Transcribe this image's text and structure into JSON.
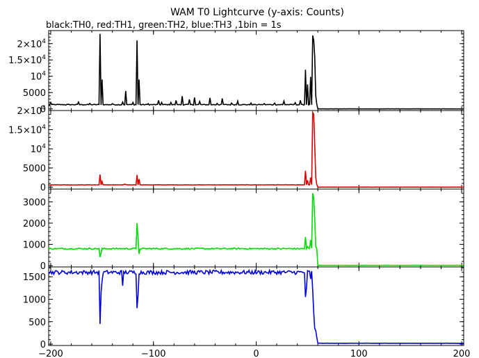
{
  "chart_data": {
    "type": "line",
    "title": "WAM T0 Lightcurve (y-axis: Counts)",
    "subtitle": "black:TH0, red:TH1, green:TH2, blue:TH3 ,1bin = 1s",
    "x_range": [
      -202,
      202
    ],
    "x_ticks": [
      -200,
      -100,
      0,
      100,
      200
    ],
    "x_tick_labels": [
      "−200",
      "−100",
      "0",
      "100",
      "200"
    ],
    "panels": [
      {
        "name": "TH0",
        "color": "#000000",
        "ylim": [
          -500,
          24000
        ],
        "y_ticks": [
          0,
          5000,
          10000,
          15000,
          20000
        ],
        "y_tick_labels": [
          {
            "mantissa": "0",
            "exp": ""
          },
          {
            "mantissa": "5000",
            "exp": ""
          },
          {
            "mantissa": "10",
            "exp": "4"
          },
          {
            "mantissa": "1.5×10",
            "exp": "4"
          },
          {
            "mantissa": "2×10",
            "exp": "4"
          }
        ],
        "baseline": 1300,
        "noise": 120,
        "post_level": 0,
        "spikes": [
          {
            "x": -200,
            "v": 2000
          },
          {
            "x": -173,
            "v": 2100
          },
          {
            "x": -162,
            "v": 1700
          },
          {
            "x": -152,
            "v": 23000
          },
          {
            "x": -150,
            "v": 9000
          },
          {
            "x": -140,
            "v": 1600
          },
          {
            "x": -130,
            "v": 2100
          },
          {
            "x": -127,
            "v": 5500
          },
          {
            "x": -120,
            "v": 2000
          },
          {
            "x": -116,
            "v": 21000
          },
          {
            "x": -114,
            "v": 9000
          },
          {
            "x": -105,
            "v": 1600
          },
          {
            "x": -95,
            "v": 2600
          },
          {
            "x": -92,
            "v": 2000
          },
          {
            "x": -83,
            "v": 2000
          },
          {
            "x": -78,
            "v": 2600
          },
          {
            "x": -72,
            "v": 3900
          },
          {
            "x": -65,
            "v": 2900
          },
          {
            "x": -60,
            "v": 3500
          },
          {
            "x": -55,
            "v": 2300
          },
          {
            "x": -45,
            "v": 3400
          },
          {
            "x": -38,
            "v": 1700
          },
          {
            "x": -33,
            "v": 3200
          },
          {
            "x": -24,
            "v": 1800
          },
          {
            "x": -18,
            "v": 2400
          },
          {
            "x": -5,
            "v": 1800
          },
          {
            "x": 8,
            "v": 1600
          },
          {
            "x": 18,
            "v": 1800
          },
          {
            "x": 27,
            "v": 2400
          },
          {
            "x": 38,
            "v": 1900
          },
          {
            "x": 43,
            "v": 2600
          },
          {
            "x": 48,
            "v": 12000
          },
          {
            "x": 50,
            "v": 7500
          },
          {
            "x": 53,
            "v": 9800
          },
          {
            "x": 55,
            "v": 22500
          },
          {
            "x": 56,
            "v": 21000
          },
          {
            "x": 57,
            "v": 16000
          },
          {
            "x": 58,
            "v": 4000
          }
        ]
      },
      {
        "name": "TH1",
        "color": "#dd0000",
        "ylim": [
          -500,
          20000
        ],
        "y_ticks": [
          0,
          5000,
          10000,
          15000,
          20000
        ],
        "y_tick_labels": [
          {
            "mantissa": "0",
            "exp": ""
          },
          {
            "mantissa": "5000",
            "exp": ""
          },
          {
            "mantissa": "10",
            "exp": "4"
          },
          {
            "mantissa": "1.5×10",
            "exp": "4"
          },
          {
            "mantissa": "2×10",
            "exp": "4"
          }
        ],
        "baseline": 600,
        "noise": 50,
        "post_level": 0,
        "spikes": [
          {
            "x": -152,
            "v": 3300
          },
          {
            "x": -150,
            "v": 1500
          },
          {
            "x": -128,
            "v": 800
          },
          {
            "x": -116,
            "v": 3200
          },
          {
            "x": -114,
            "v": 2100
          },
          {
            "x": 48,
            "v": 4300
          },
          {
            "x": 50,
            "v": 1800
          },
          {
            "x": 53,
            "v": 2500
          },
          {
            "x": 55,
            "v": 19500
          },
          {
            "x": 56,
            "v": 19000
          },
          {
            "x": 57,
            "v": 11000
          },
          {
            "x": 58,
            "v": 2500
          }
        ]
      },
      {
        "name": "TH2",
        "color": "#00dd00",
        "ylim": [
          -60,
          3600
        ],
        "y_ticks": [
          0,
          1000,
          2000,
          3000
        ],
        "y_tick_labels": [
          {
            "mantissa": "0",
            "exp": ""
          },
          {
            "mantissa": "1000",
            "exp": ""
          },
          {
            "mantissa": "2000",
            "exp": ""
          },
          {
            "mantissa": "3000",
            "exp": ""
          }
        ],
        "baseline": 800,
        "noise": 30,
        "post_level": 15,
        "spikes": [
          {
            "x": -152,
            "v": 400
          },
          {
            "x": -151,
            "v": 600
          },
          {
            "x": -116,
            "v": 2000
          },
          {
            "x": -115,
            "v": 1300
          },
          {
            "x": -114,
            "v": 550
          },
          {
            "x": 48,
            "v": 1350
          },
          {
            "x": 50,
            "v": 900
          },
          {
            "x": 53,
            "v": 1200
          },
          {
            "x": 55,
            "v": 3400
          },
          {
            "x": 56,
            "v": 3200
          },
          {
            "x": 57,
            "v": 2200
          },
          {
            "x": 58,
            "v": 900
          }
        ]
      },
      {
        "name": "TH3",
        "color": "#0000dd",
        "ylim": [
          -30,
          1720
        ],
        "y_ticks": [
          0,
          500,
          1000,
          1500
        ],
        "y_tick_labels": [
          {
            "mantissa": "0",
            "exp": ""
          },
          {
            "mantissa": "500",
            "exp": ""
          },
          {
            "mantissa": "1000",
            "exp": ""
          },
          {
            "mantissa": "1500",
            "exp": ""
          }
        ],
        "baseline": 1600,
        "noise": 45,
        "post_level": 20,
        "spikes": [
          {
            "x": -152,
            "v": 450
          },
          {
            "x": -151,
            "v": 1150
          },
          {
            "x": -150,
            "v": 1400
          },
          {
            "x": -130,
            "v": 1300
          },
          {
            "x": -116,
            "v": 800
          },
          {
            "x": -115,
            "v": 1100
          },
          {
            "x": 48,
            "v": 1050
          },
          {
            "x": 49,
            "v": 1250
          },
          {
            "x": 53,
            "v": 1450
          },
          {
            "x": 55,
            "v": 1200
          },
          {
            "x": 56,
            "v": 700
          },
          {
            "x": 57,
            "v": 350
          },
          {
            "x": 58,
            "v": 300
          },
          {
            "x": 59,
            "v": 150
          }
        ]
      }
    ],
    "drop_x": 59
  }
}
